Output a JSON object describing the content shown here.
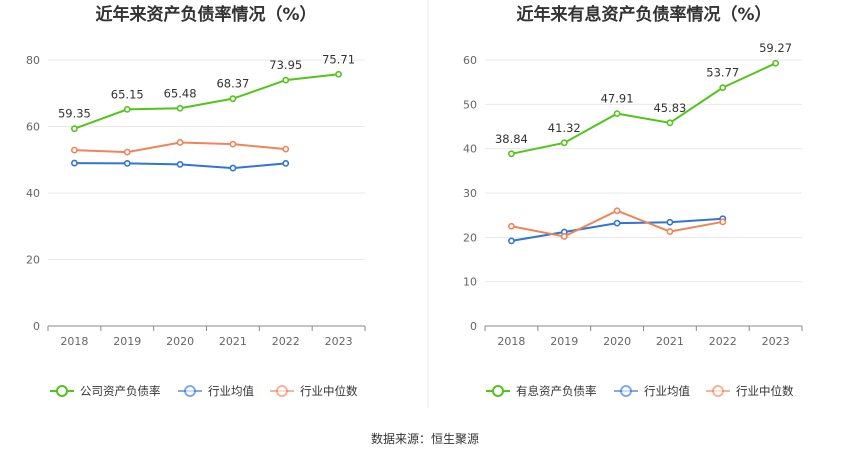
{
  "source": "数据来源：恒生聚源",
  "colors": {
    "company": "#52c41a",
    "industry_avg": "#2f74d6",
    "industry_median": "#f0835a",
    "grid": "#e8e8e8",
    "axis": "#888888"
  },
  "chart_data": [
    {
      "type": "line",
      "title": "近年来资产负债率情况（%）",
      "categories": [
        "2018",
        "2019",
        "2020",
        "2021",
        "2022",
        "2023"
      ],
      "ylim": [
        0,
        80
      ],
      "yticks": [
        0,
        20,
        40,
        60,
        80
      ],
      "grid": true,
      "legend_position": "bottom",
      "series": [
        {
          "name": "公司资产负债率",
          "values": [
            59.35,
            65.15,
            65.48,
            68.37,
            73.95,
            75.71
          ],
          "labels": [
            "59.35",
            "65.15",
            "65.48",
            "68.37",
            "73.95",
            "75.71"
          ]
        },
        {
          "name": "行业均值",
          "values": [
            49.0,
            48.9,
            48.6,
            47.5,
            48.9,
            null
          ]
        },
        {
          "name": "行业中位数",
          "values": [
            52.9,
            52.3,
            55.2,
            54.7,
            53.2,
            null
          ]
        }
      ]
    },
    {
      "type": "line",
      "title": "近年来有息资产负债率情况（%）",
      "categories": [
        "2018",
        "2019",
        "2020",
        "2021",
        "2022",
        "2023"
      ],
      "ylim": [
        0,
        60
      ],
      "yticks": [
        0,
        10,
        20,
        30,
        40,
        50,
        60
      ],
      "grid": true,
      "legend_position": "bottom",
      "series": [
        {
          "name": "有息资产负债率",
          "values": [
            38.84,
            41.32,
            47.91,
            45.83,
            53.77,
            59.27
          ],
          "labels": [
            "38.84",
            "41.32",
            "47.91",
            "45.83",
            "53.77",
            "59.27"
          ]
        },
        {
          "name": "行业均值",
          "values": [
            19.2,
            21.2,
            23.2,
            23.4,
            24.2,
            null
          ]
        },
        {
          "name": "行业中位数",
          "values": [
            22.5,
            20.2,
            26.0,
            21.3,
            23.5,
            null
          ]
        }
      ]
    }
  ]
}
